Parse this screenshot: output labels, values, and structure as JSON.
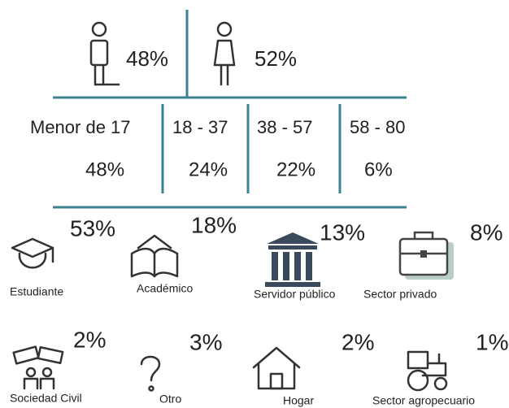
{
  "gender": [
    {
      "value": "48%"
    },
    {
      "value": "52%"
    }
  ],
  "ages": [
    {
      "label": "Menor de 17",
      "value": "48%"
    },
    {
      "label": "18 - 37",
      "value": "24%"
    },
    {
      "label": "38 - 57",
      "value": "22%"
    },
    {
      "label": "58 - 80",
      "value": "6%"
    }
  ],
  "occupations": [
    {
      "label": "Estudiante",
      "value": "53%"
    },
    {
      "label": "Académico",
      "value": "18%"
    },
    {
      "label": "Servidor público",
      "value": "13%"
    },
    {
      "label": "Sector privado",
      "value": "8%"
    },
    {
      "label": "Sociedad Civil",
      "value": "2%"
    },
    {
      "label": "Otro",
      "value": "3%"
    },
    {
      "label": "Hogar",
      "value": "2%"
    },
    {
      "label": "Sector agropecuario",
      "value": "1%"
    }
  ]
}
